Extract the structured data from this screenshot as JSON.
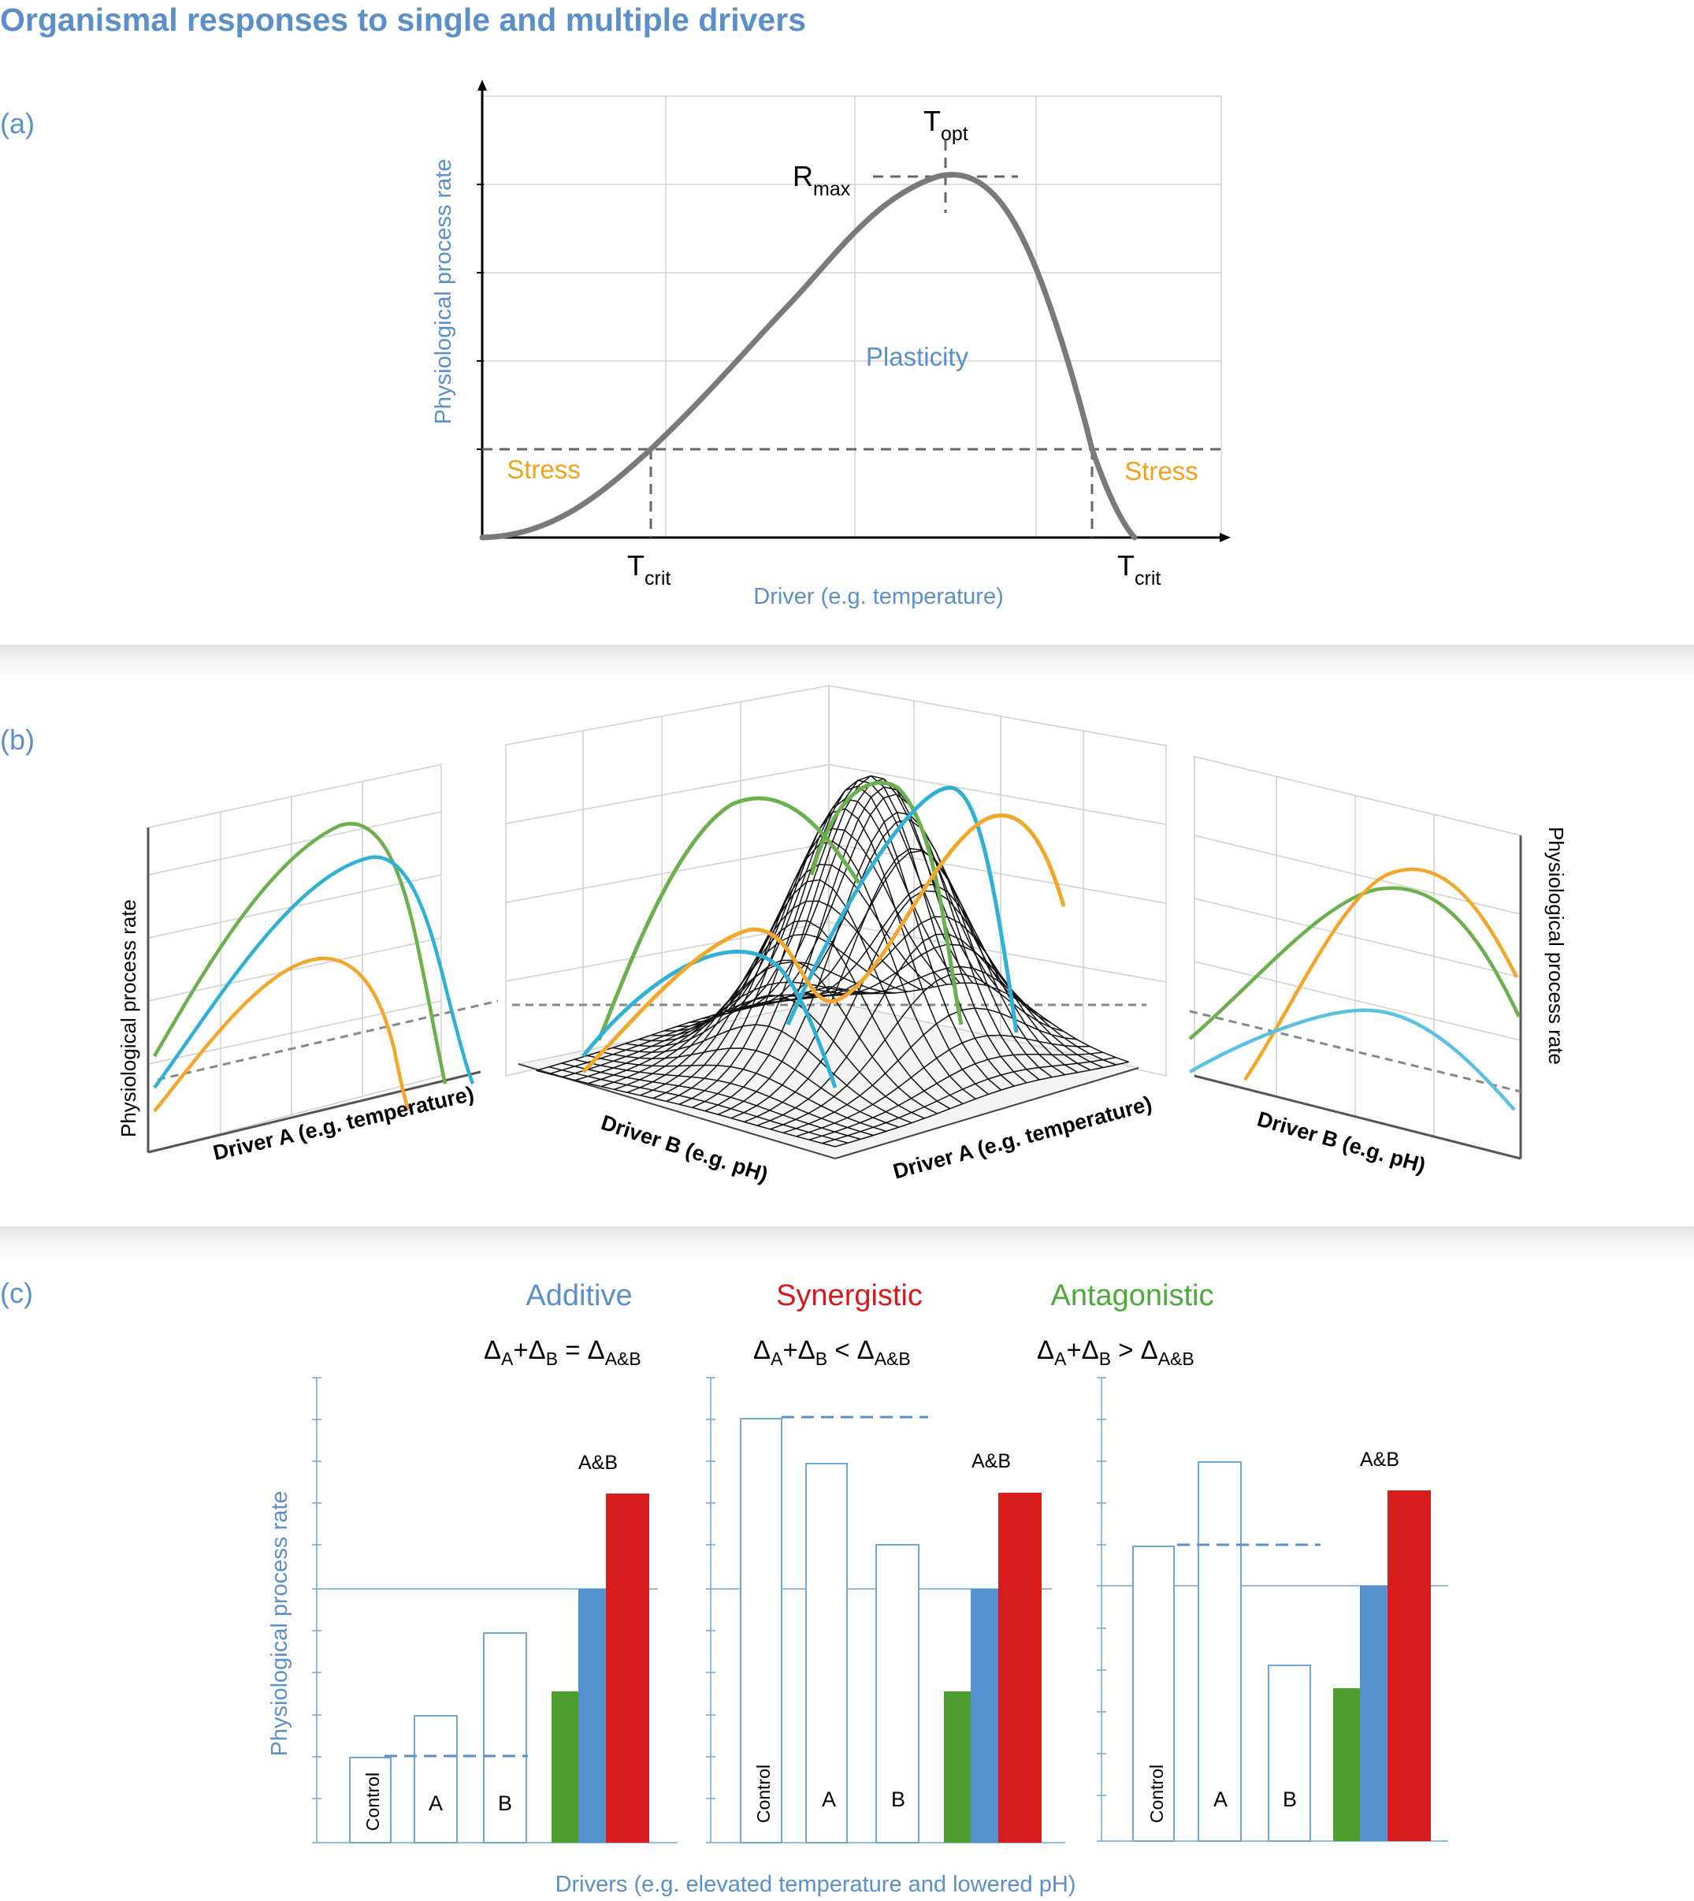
{
  "title": "Organismal responses to single and multiple drivers",
  "panels": {
    "a": {
      "letter": "(a)",
      "ylabel": "Physiological process rate",
      "xlabel": "Driver (e.g. temperature)",
      "plasticity": "Plasticity",
      "stress_left": "Stress",
      "stress_right": "Stress",
      "topt": {
        "main": "T",
        "sub": "opt"
      },
      "rmax": {
        "main": "R",
        "sub": "max"
      },
      "tcrit_left": {
        "main": "T",
        "sub": "crit"
      },
      "tcrit_right": {
        "main": "T",
        "sub": "crit"
      }
    },
    "b": {
      "letter": "(b)",
      "left_ylabel": "Physiological process rate",
      "left_xlabel": "Driver A (e.g. temperature)",
      "center_xlabel_b": "Driver B (e.g. pH)",
      "center_xlabel_a": "Driver A (e.g. temperature)",
      "right_xlabel": "Driver B (e.g. pH)",
      "right_ylabel": "Physiological process rate"
    },
    "c": {
      "letter": "(c)",
      "ylabel": "Physiological process rate",
      "xlabel": "Drivers (e.g. elevated temperature and lowered pH)",
      "combined_label": "A&B",
      "bar_labels": {
        "control": "Control",
        "a": "A",
        "b": "B"
      },
      "headers": [
        {
          "name": "Additive",
          "color": "#5b8fc9",
          "relation": "="
        },
        {
          "name": "Synergistic",
          "color": "#d7191c",
          "relation": "<"
        },
        {
          "name": "Antagonistic",
          "color": "#4daa3a",
          "relation": ">"
        }
      ]
    }
  },
  "colors": {
    "accent_blue": "#5b8fc9",
    "stress_orange": "#f0a21b",
    "curve_grey": "#7a7a7a",
    "green": "#6ab04c",
    "cyan": "#2fb1d6",
    "orange": "#f2a72b",
    "bar_green": "#4c9e2f",
    "bar_blue": "#5590cf",
    "bar_red": "#d81e1c"
  }
}
